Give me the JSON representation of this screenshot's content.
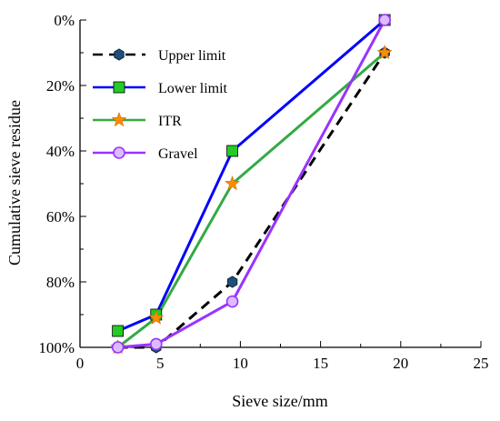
{
  "chart_data": {
    "type": "line",
    "xlabel": "Sieve size/mm",
    "ylabel": "Cumulative sieve residue",
    "xlim": [
      0,
      25
    ],
    "ylim": [
      0,
      100
    ],
    "y_axis_inverted": true,
    "grid": false,
    "legend_position": "top-left",
    "x_ticks": [
      "0",
      "5",
      "10",
      "15",
      "20",
      "25"
    ],
    "y_ticks": [
      "0%",
      "20%",
      "40%",
      "60%",
      "80%",
      "100%"
    ],
    "series": [
      {
        "name": "Upper limit",
        "x": [
          2.36,
          4.75,
          9.5,
          19
        ],
        "y": [
          100,
          100,
          80,
          10
        ],
        "color": "#000000",
        "line_style": "dashed",
        "marker": "hexagon",
        "marker_color": "#1f4e79"
      },
      {
        "name": "Lower limit",
        "x": [
          2.36,
          4.75,
          9.5,
          19
        ],
        "y": [
          95,
          90,
          40,
          0
        ],
        "color": "#0000ff",
        "line_style": "solid",
        "marker": "square",
        "marker_color": "#22cc22"
      },
      {
        "name": "ITR",
        "x": [
          2.36,
          4.75,
          9.5,
          19
        ],
        "y": [
          100,
          91,
          50,
          10
        ],
        "color": "#33aa44",
        "line_style": "solid",
        "marker": "star",
        "marker_color": "#ff8c00"
      },
      {
        "name": "Gravel",
        "x": [
          2.36,
          4.75,
          9.5,
          19
        ],
        "y": [
          100,
          99,
          86,
          0
        ],
        "color": "#9933ff",
        "line_style": "solid",
        "marker": "circle",
        "marker_color": "#ddbbff"
      }
    ]
  }
}
